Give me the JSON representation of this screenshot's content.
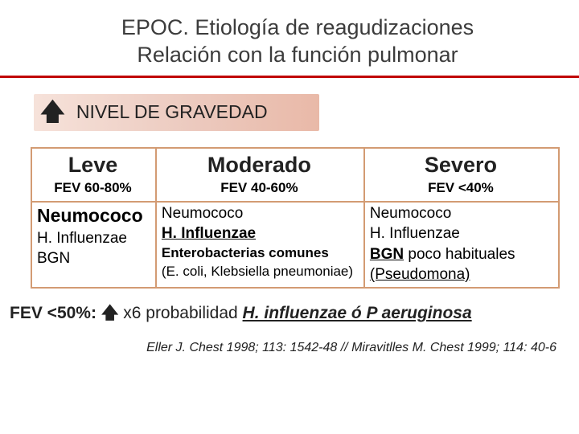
{
  "title": {
    "line1": "EPOC. Etiología de reagudizaciones",
    "line2": "Relación con la función pulmonar"
  },
  "severity_bar": {
    "arrow": "⯅",
    "label": "NIVEL DE GRAVEDAD",
    "gradient_start": "#f6e2da",
    "gradient_end": "#e9b9a8"
  },
  "table": {
    "border_color": "#d39b73",
    "levels": [
      {
        "name": "Leve",
        "fev": "FEV 60-80%"
      },
      {
        "name": "Moderado",
        "fev": "FEV 40-60%"
      },
      {
        "name": "Severo",
        "fev": "FEV <40%"
      }
    ],
    "bodies": {
      "leve": {
        "line1": "Neumococo",
        "line2": "H. Influenzae",
        "line3": "BGN"
      },
      "moderado": {
        "line1": "Neumococo",
        "line2": "H. Influenzae",
        "line3": "Enterobacterias comunes",
        "line4": "(E. coli, Klebsiella pneumoniae)"
      },
      "severo": {
        "line1": "Neumococo",
        "line2": "H. Influenzae",
        "line3_a": "BGN",
        "line3_b": " poco habituales",
        "line4": "(Pseudomona)"
      }
    }
  },
  "footer": {
    "lead": "FEV <50%: ",
    "arrow": "⯅",
    "mid": " x6 probabilidad ",
    "emph": "H. influenzae ó P aeruginosa"
  },
  "citation": "Eller J. Chest 1998; 113: 1542-48  // Miravitlles M. Chest 1999; 114: 40-6",
  "colors": {
    "title_rule": "#c00000",
    "text": "#222222",
    "background": "#ffffff"
  },
  "fonts": {
    "title_pt": 27,
    "level_pt": 27,
    "fev_pt": 17,
    "body_pt": 19,
    "footer_pt": 21,
    "citation_pt": 16
  }
}
